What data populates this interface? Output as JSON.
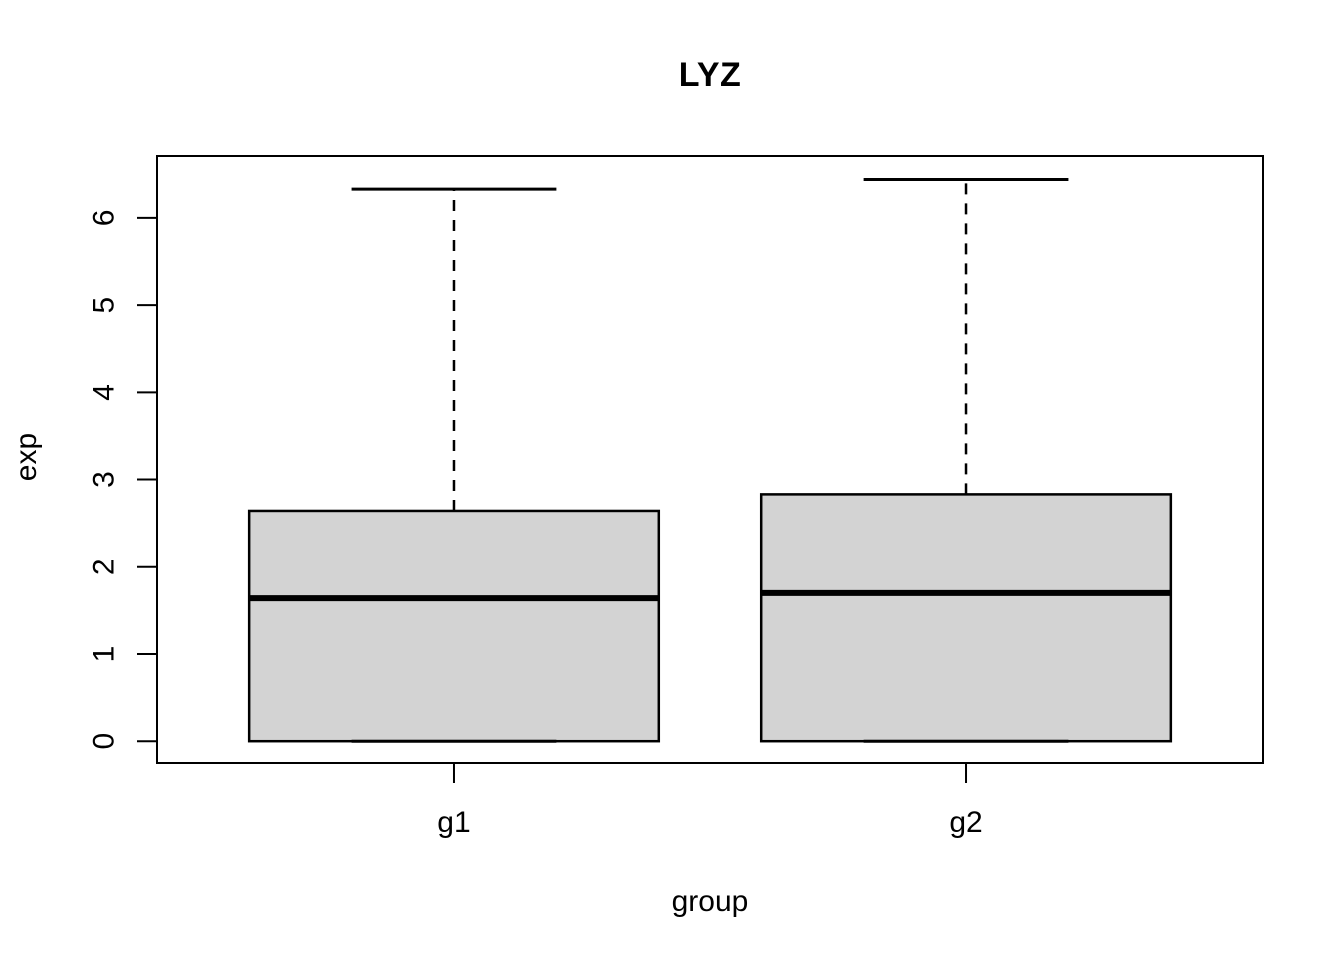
{
  "figure": {
    "background": "#ffffff"
  },
  "chart_data": {
    "type": "boxplot",
    "title": "LYZ",
    "xlabel": "group",
    "ylabel": "exp",
    "categories": [
      "g1",
      "g2"
    ],
    "yticks": [
      0,
      1,
      2,
      3,
      4,
      5,
      6
    ],
    "ylim": [
      -0.25,
      6.71
    ],
    "xlim": [
      0.42,
      2.58
    ],
    "box_width": 0.8,
    "cap_width": 0.4,
    "grid": false,
    "legend": "none",
    "series": [
      {
        "name": "g1",
        "position": 1,
        "min": 0,
        "q1": 0,
        "median": 1.64,
        "q3": 2.64,
        "max": 6.33,
        "outliers": []
      },
      {
        "name": "g2",
        "position": 2,
        "min": 0,
        "q1": 0,
        "median": 1.7,
        "q3": 2.83,
        "max": 6.44,
        "outliers": []
      }
    ],
    "colors": {
      "box_fill": "#d3d3d3",
      "stroke": "#000000",
      "text": "#000000"
    }
  }
}
